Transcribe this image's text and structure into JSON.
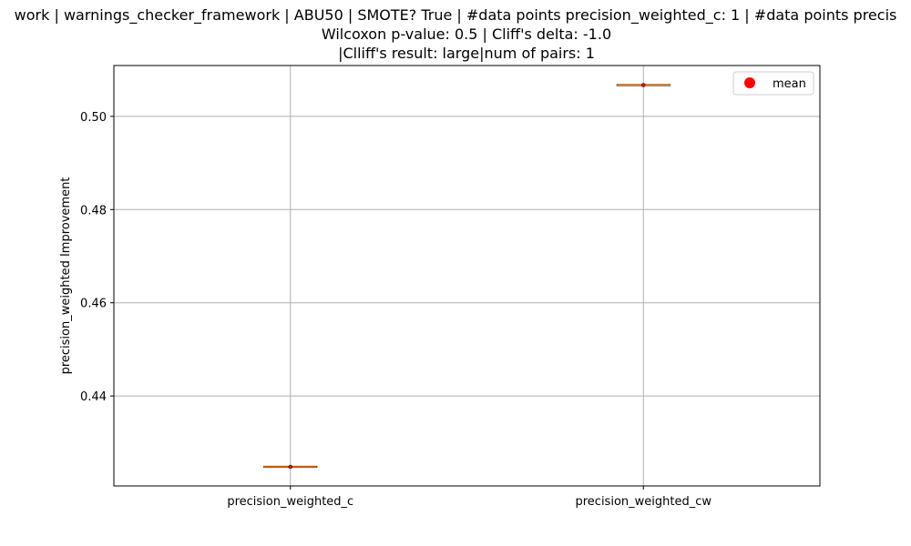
{
  "chart_data": {
    "type": "box",
    "title_lines": [
      "work | warnings_checker_framework | ABU50 | SMOTE? True | #data points precision_weighted_c: 1 | #data points precis",
      "Wilcoxon p-value: 0.5 | Cliff's delta: -1.0",
      "|Clliff's result: large|num of pairs: 1"
    ],
    "xlabel": "",
    "ylabel": "precision_weighted Improvement",
    "categories": [
      "precision_weighted_c",
      "precision_weighted_cw"
    ],
    "values": [
      0.4248,
      0.5067
    ],
    "means": [
      0.4248,
      0.5067
    ],
    "ylim": [
      0.4207,
      0.5109
    ],
    "yticks": [
      0.44,
      0.46,
      0.48,
      0.5
    ],
    "ytick_labels": [
      "0.44",
      "0.46",
      "0.48",
      "0.50"
    ],
    "grid": true,
    "legend": {
      "entries": [
        {
          "label": "mean",
          "color": "#ff0000",
          "marker": "circle"
        }
      ],
      "placement": "upper right"
    },
    "colors": {
      "median_line": "#ff7f0e",
      "box_edge": "#000000",
      "mean_marker": "#ff0000",
      "grid": "#b0b0b0"
    }
  }
}
